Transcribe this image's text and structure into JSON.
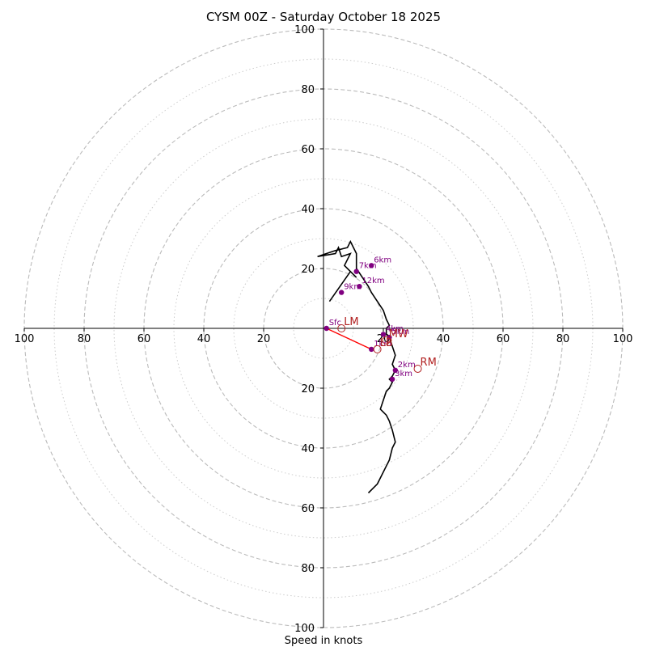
{
  "chart_data": {
    "type": "hodograph",
    "title": "CYSM 00Z - Saturday October 18 2025",
    "xlabel": "Speed in knots",
    "range": [
      -100,
      100
    ],
    "ring_major": [
      20,
      40,
      60,
      80,
      100
    ],
    "ring_minor": [
      10,
      30,
      50,
      70,
      90
    ],
    "tick_values": [
      100,
      80,
      60,
      40,
      20
    ],
    "x_tick_labels": [
      "100",
      "80",
      "60",
      "40",
      "20",
      "20",
      "40",
      "60",
      "80",
      "100"
    ],
    "y_tick_labels_up": [
      "20",
      "40",
      "60",
      "80",
      "100"
    ],
    "y_tick_labels_down": [
      "20",
      "40",
      "60",
      "80",
      "100"
    ],
    "colors": {
      "trace": "#000000",
      "height_points": "#800080",
      "motion": "#b22222",
      "shear_line": "#ff0000",
      "grid": "#bbbbbb"
    },
    "trace": [
      [
        2,
        -9
      ],
      [
        9,
        -19
      ],
      [
        11,
        -17
      ],
      [
        7,
        -21
      ],
      [
        9,
        -25
      ],
      [
        6,
        -24
      ],
      [
        5,
        -27
      ],
      [
        4,
        -25
      ],
      [
        -2,
        -24
      ],
      [
        4,
        -26
      ],
      [
        8,
        -27
      ],
      [
        9,
        -29
      ],
      [
        11,
        -25
      ],
      [
        11,
        -20
      ],
      [
        13,
        -17
      ],
      [
        15,
        -14
      ],
      [
        16,
        -12
      ],
      [
        18,
        -9
      ],
      [
        20,
        -6
      ],
      [
        21,
        -3
      ],
      [
        22,
        -1
      ],
      [
        21,
        0
      ],
      [
        21,
        2
      ],
      [
        22,
        3
      ],
      [
        23,
        6
      ],
      [
        24,
        9
      ],
      [
        23,
        12
      ],
      [
        24,
        14
      ],
      [
        23,
        16
      ],
      [
        22,
        17
      ],
      [
        23,
        18
      ],
      [
        22,
        20
      ],
      [
        21,
        21
      ],
      [
        20,
        24
      ],
      [
        19,
        27
      ],
      [
        21,
        29
      ],
      [
        22,
        31
      ],
      [
        23,
        34
      ],
      [
        24,
        38
      ],
      [
        23,
        40
      ],
      [
        22,
        44
      ],
      [
        21,
        46
      ],
      [
        19,
        50
      ],
      [
        18,
        52
      ],
      [
        16,
        54
      ],
      [
        15,
        55
      ]
    ],
    "height_points": [
      {
        "label": "Sfc",
        "u": 1,
        "v": 0
      },
      {
        "label": "1km",
        "u": 16,
        "v": 7
      },
      {
        "label": "2km",
        "u": 24,
        "v": 14
      },
      {
        "label": "3km",
        "u": 23,
        "v": 17
      },
      {
        "label": "4km",
        "u": 20,
        "v": 2
      },
      {
        "label": "5km",
        "u": 22,
        "v": 3
      },
      {
        "label": "6km",
        "u": 16,
        "v": -21
      },
      {
        "label": "7km",
        "u": 11,
        "v": -19
      },
      {
        "label": "9km",
        "u": 6,
        "v": -12
      },
      {
        "label": "12km",
        "u": 12,
        "v": -14
      }
    ],
    "motions": [
      {
        "label": "LM",
        "u": 6,
        "v": 0
      },
      {
        "label": "RM",
        "u": 31.5,
        "v": 13.5
      },
      {
        "label": "MW",
        "u": 21,
        "v": 4
      },
      {
        "label": "LB",
        "u": 18,
        "v": 7
      }
    ],
    "shear_vector": [
      [
        1,
        0
      ],
      [
        16,
        7
      ]
    ]
  }
}
